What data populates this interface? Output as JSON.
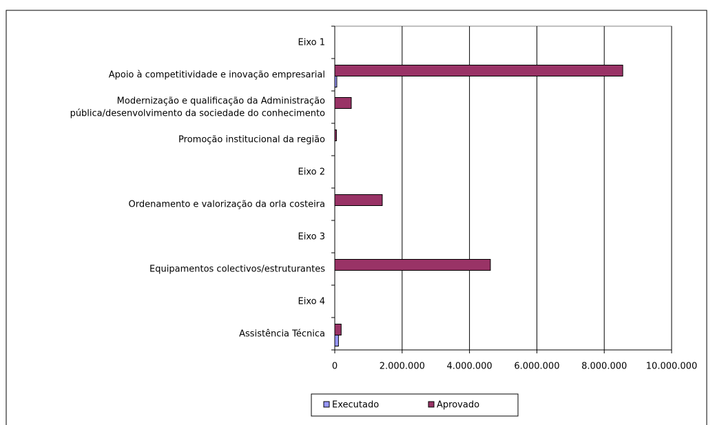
{
  "chart_data": {
    "type": "bar",
    "orientation": "horizontal",
    "categories": [
      "Eixo 1",
      "Apoio à competitividade e inovação empresarial",
      "Modernização e qualificação da Administração\npública/desenvolvimento da sociedade do conhecimento",
      "Promoção institucional da região",
      "Eixo 2",
      "Ordenamento e valorização da orla costeira",
      "Eixo 3",
      "Equipamentos colectivos/estruturantes",
      "Eixo 4",
      "Assistência Técnica"
    ],
    "series": [
      {
        "name": "Executado",
        "color": "#9999ff",
        "values": [
          null,
          60000,
          null,
          null,
          null,
          null,
          null,
          null,
          null,
          110000
        ]
      },
      {
        "name": "Aprovado",
        "color": "#993366",
        "values": [
          null,
          8550000,
          490000,
          50000,
          null,
          1410000,
          null,
          4620000,
          null,
          190000
        ]
      }
    ],
    "xlim": [
      0,
      10000000
    ],
    "xticks": [
      0,
      {
        "value": 2000000,
        "label": "2.000.000"
      },
      {
        "value": 4000000,
        "label": "4.000.000"
      },
      {
        "value": 6000000,
        "label": "6.000.000"
      },
      {
        "value": 8000000,
        "label": "8.000.000"
      },
      {
        "value": 10000000,
        "label": "10.000.000"
      }
    ],
    "grid": true,
    "legend": "bottom"
  }
}
